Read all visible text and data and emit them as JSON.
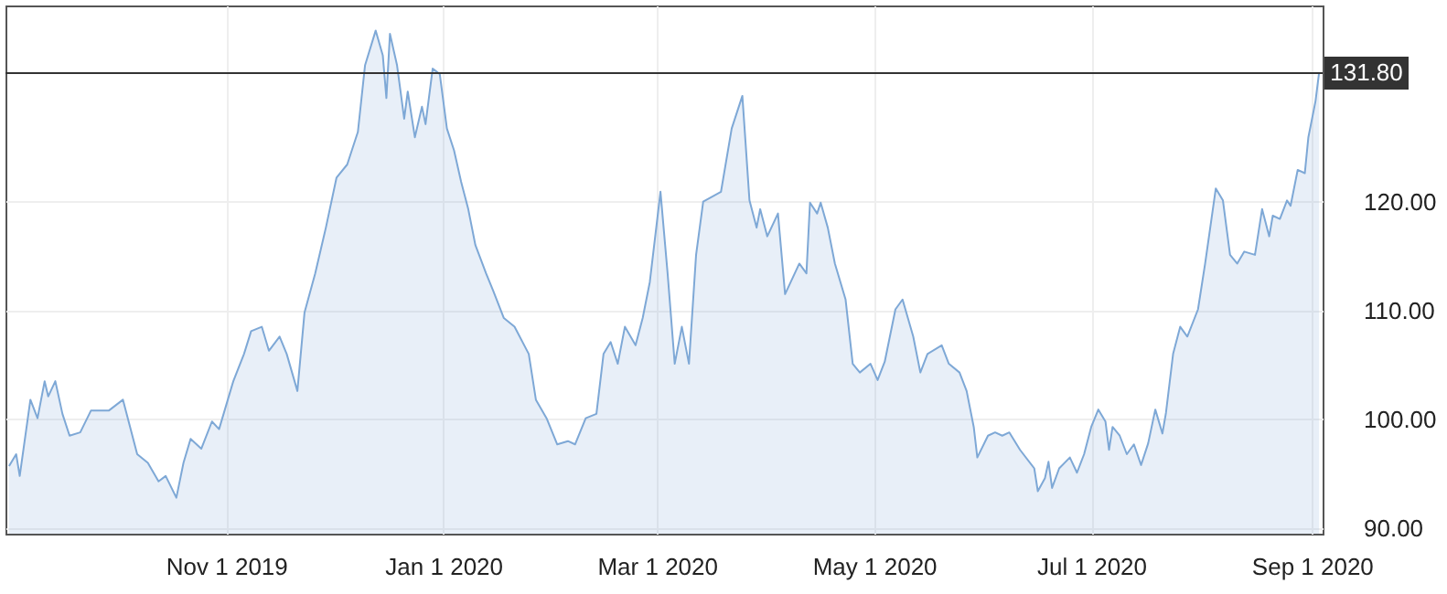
{
  "chart_data": {
    "type": "area",
    "x": [
      "2019-09-01",
      "2019-09-03",
      "2019-09-04",
      "2019-09-07",
      "2019-09-09",
      "2019-09-11",
      "2019-09-12",
      "2019-09-14",
      "2019-09-16",
      "2019-09-18",
      "2019-09-21",
      "2019-09-24",
      "2019-09-29",
      "2019-10-03",
      "2019-10-05",
      "2019-10-07",
      "2019-10-10",
      "2019-10-13",
      "2019-10-15",
      "2019-10-18",
      "2019-10-20",
      "2019-10-22",
      "2019-10-25",
      "2019-10-28",
      "2019-10-30",
      "2019-11-03",
      "2019-11-06",
      "2019-11-08",
      "2019-11-11",
      "2019-11-13",
      "2019-11-16",
      "2019-11-18",
      "2019-11-21",
      "2019-11-23",
      "2019-11-26",
      "2019-11-29",
      "2019-12-02",
      "2019-12-05",
      "2019-12-08",
      "2019-12-10",
      "2019-12-13",
      "2019-12-15",
      "2019-12-16",
      "2019-12-17",
      "2019-12-19",
      "2019-12-21",
      "2019-12-22",
      "2019-12-24",
      "2019-12-26",
      "2019-12-27",
      "2019-12-29",
      "2019-12-31",
      "2020-01-02",
      "2020-01-04",
      "2020-01-06",
      "2020-01-08",
      "2020-01-10",
      "2020-01-13",
      "2020-01-15",
      "2020-01-18",
      "2020-01-21",
      "2020-01-25",
      "2020-01-27",
      "2020-01-30",
      "2020-02-02",
      "2020-02-05",
      "2020-02-07",
      "2020-02-10",
      "2020-02-13",
      "2020-02-15",
      "2020-02-17",
      "2020-02-19",
      "2020-02-21",
      "2020-02-24",
      "2020-02-26",
      "2020-02-28",
      "2020-03-02",
      "2020-03-04",
      "2020-03-06",
      "2020-03-08",
      "2020-03-10",
      "2020-03-12",
      "2020-03-14",
      "2020-03-19",
      "2020-03-22",
      "2020-03-25",
      "2020-03-27",
      "2020-03-29",
      "2020-03-30",
      "2020-04-01",
      "2020-04-04",
      "2020-04-06",
      "2020-04-10",
      "2020-04-12",
      "2020-04-13",
      "2020-04-15",
      "2020-04-16",
      "2020-04-18",
      "2020-04-20",
      "2020-04-23",
      "2020-04-25",
      "2020-04-27",
      "2020-04-30",
      "2020-05-02",
      "2020-05-04",
      "2020-05-07",
      "2020-05-09",
      "2020-05-12",
      "2020-05-14",
      "2020-05-16",
      "2020-05-20",
      "2020-05-22",
      "2020-05-25",
      "2020-05-27",
      "2020-05-29",
      "2020-05-30",
      "2020-06-02",
      "2020-06-04",
      "2020-06-06",
      "2020-06-08",
      "2020-06-11",
      "2020-06-15",
      "2020-06-16",
      "2020-06-18",
      "2020-06-19",
      "2020-06-20",
      "2020-06-22",
      "2020-06-25",
      "2020-06-27",
      "2020-06-29",
      "2020-07-01",
      "2020-07-03",
      "2020-07-05",
      "2020-07-06",
      "2020-07-07",
      "2020-07-09",
      "2020-07-11",
      "2020-07-13",
      "2020-07-15",
      "2020-07-17",
      "2020-07-19",
      "2020-07-21",
      "2020-07-22",
      "2020-07-24",
      "2020-07-26",
      "2020-07-28",
      "2020-07-31",
      "2020-08-02",
      "2020-08-05",
      "2020-08-07",
      "2020-08-09",
      "2020-08-11",
      "2020-08-13",
      "2020-08-16",
      "2020-08-18",
      "2020-08-20",
      "2020-08-21",
      "2020-08-23",
      "2020-08-25",
      "2020-08-26",
      "2020-08-28",
      "2020-08-30",
      "2020-08-31",
      "2020-09-02",
      "2020-09-03"
    ],
    "series": [
      {
        "color": "#7ea8d6",
        "values": [
          95.7,
          96.8,
          94.8,
          101.8,
          100.1,
          103.5,
          102.1,
          103.5,
          100.5,
          98.5,
          98.8,
          100.8,
          100.8,
          101.8,
          99.3,
          96.8,
          96.0,
          94.3,
          94.8,
          92.8,
          96.0,
          98.2,
          97.3,
          99.8,
          99.1,
          103.5,
          106.0,
          108.1,
          108.5,
          106.3,
          107.6,
          106.0,
          102.6,
          109.8,
          113.4,
          117.6,
          122.2,
          123.4,
          126.4,
          132.5,
          135.7,
          133.4,
          129.5,
          135.4,
          132.5,
          127.6,
          130.1,
          125.9,
          128.7,
          127.1,
          132.2,
          131.7,
          126.7,
          124.7,
          121.8,
          119.3,
          116.0,
          113.4,
          111.8,
          109.3,
          108.5,
          106.0,
          101.8,
          100.1,
          97.7,
          98.0,
          97.7,
          100.1,
          100.5,
          106.0,
          107.1,
          105.1,
          108.5,
          106.8,
          109.3,
          112.6,
          120.9,
          113.4,
          105.1,
          108.5,
          105.1,
          115.1,
          120.0,
          120.9,
          126.7,
          129.7,
          120.1,
          117.6,
          119.3,
          116.8,
          118.9,
          111.5,
          114.3,
          113.4,
          119.9,
          118.9,
          119.9,
          117.6,
          114.3,
          111.0,
          105.1,
          104.3,
          105.1,
          103.6,
          105.3,
          110.1,
          111.0,
          107.6,
          104.3,
          106.0,
          106.8,
          105.1,
          104.3,
          102.6,
          99.3,
          96.5,
          98.5,
          98.8,
          98.5,
          98.8,
          97.2,
          95.5,
          93.4,
          94.6,
          96.1,
          93.7,
          95.5,
          96.5,
          95.1,
          96.8,
          99.3,
          100.9,
          99.8,
          97.2,
          99.3,
          98.5,
          96.8,
          97.7,
          95.8,
          97.8,
          100.9,
          98.7,
          100.6,
          106.0,
          108.5,
          107.6,
          110.1,
          114.3,
          121.2,
          120.1,
          115.1,
          114.3,
          115.4,
          115.1,
          119.3,
          116.8,
          118.7,
          118.4,
          120.1,
          119.6,
          122.9,
          122.6,
          125.9,
          129.2,
          131.8
        ]
      }
    ],
    "xlim": [
      "2019-08-31",
      "2020-09-04"
    ],
    "xticks": [
      {
        "value": "2019-11-01",
        "label": "Nov 1 2019"
      },
      {
        "value": "2020-01-01",
        "label": "Jan 1 2020"
      },
      {
        "value": "2020-03-01",
        "label": "Mar 1 2020"
      },
      {
        "value": "2020-05-01",
        "label": "May 1 2020"
      },
      {
        "value": "2020-07-01",
        "label": "Jul 1 2020"
      },
      {
        "value": "2020-09-01",
        "label": "Sep 1 2020"
      }
    ],
    "ylim": [
      89.5,
      138
    ],
    "yticks": [
      {
        "value": 90,
        "label": "90.00"
      },
      {
        "value": 100,
        "label": "100.00"
      },
      {
        "value": 110,
        "label": "110.00"
      },
      {
        "value": 120,
        "label": "120.00"
      }
    ],
    "ref_lines": [
      {
        "axis": "y",
        "value": 131.8,
        "label": "131.80",
        "color": "#333333"
      }
    ],
    "grid": true
  }
}
